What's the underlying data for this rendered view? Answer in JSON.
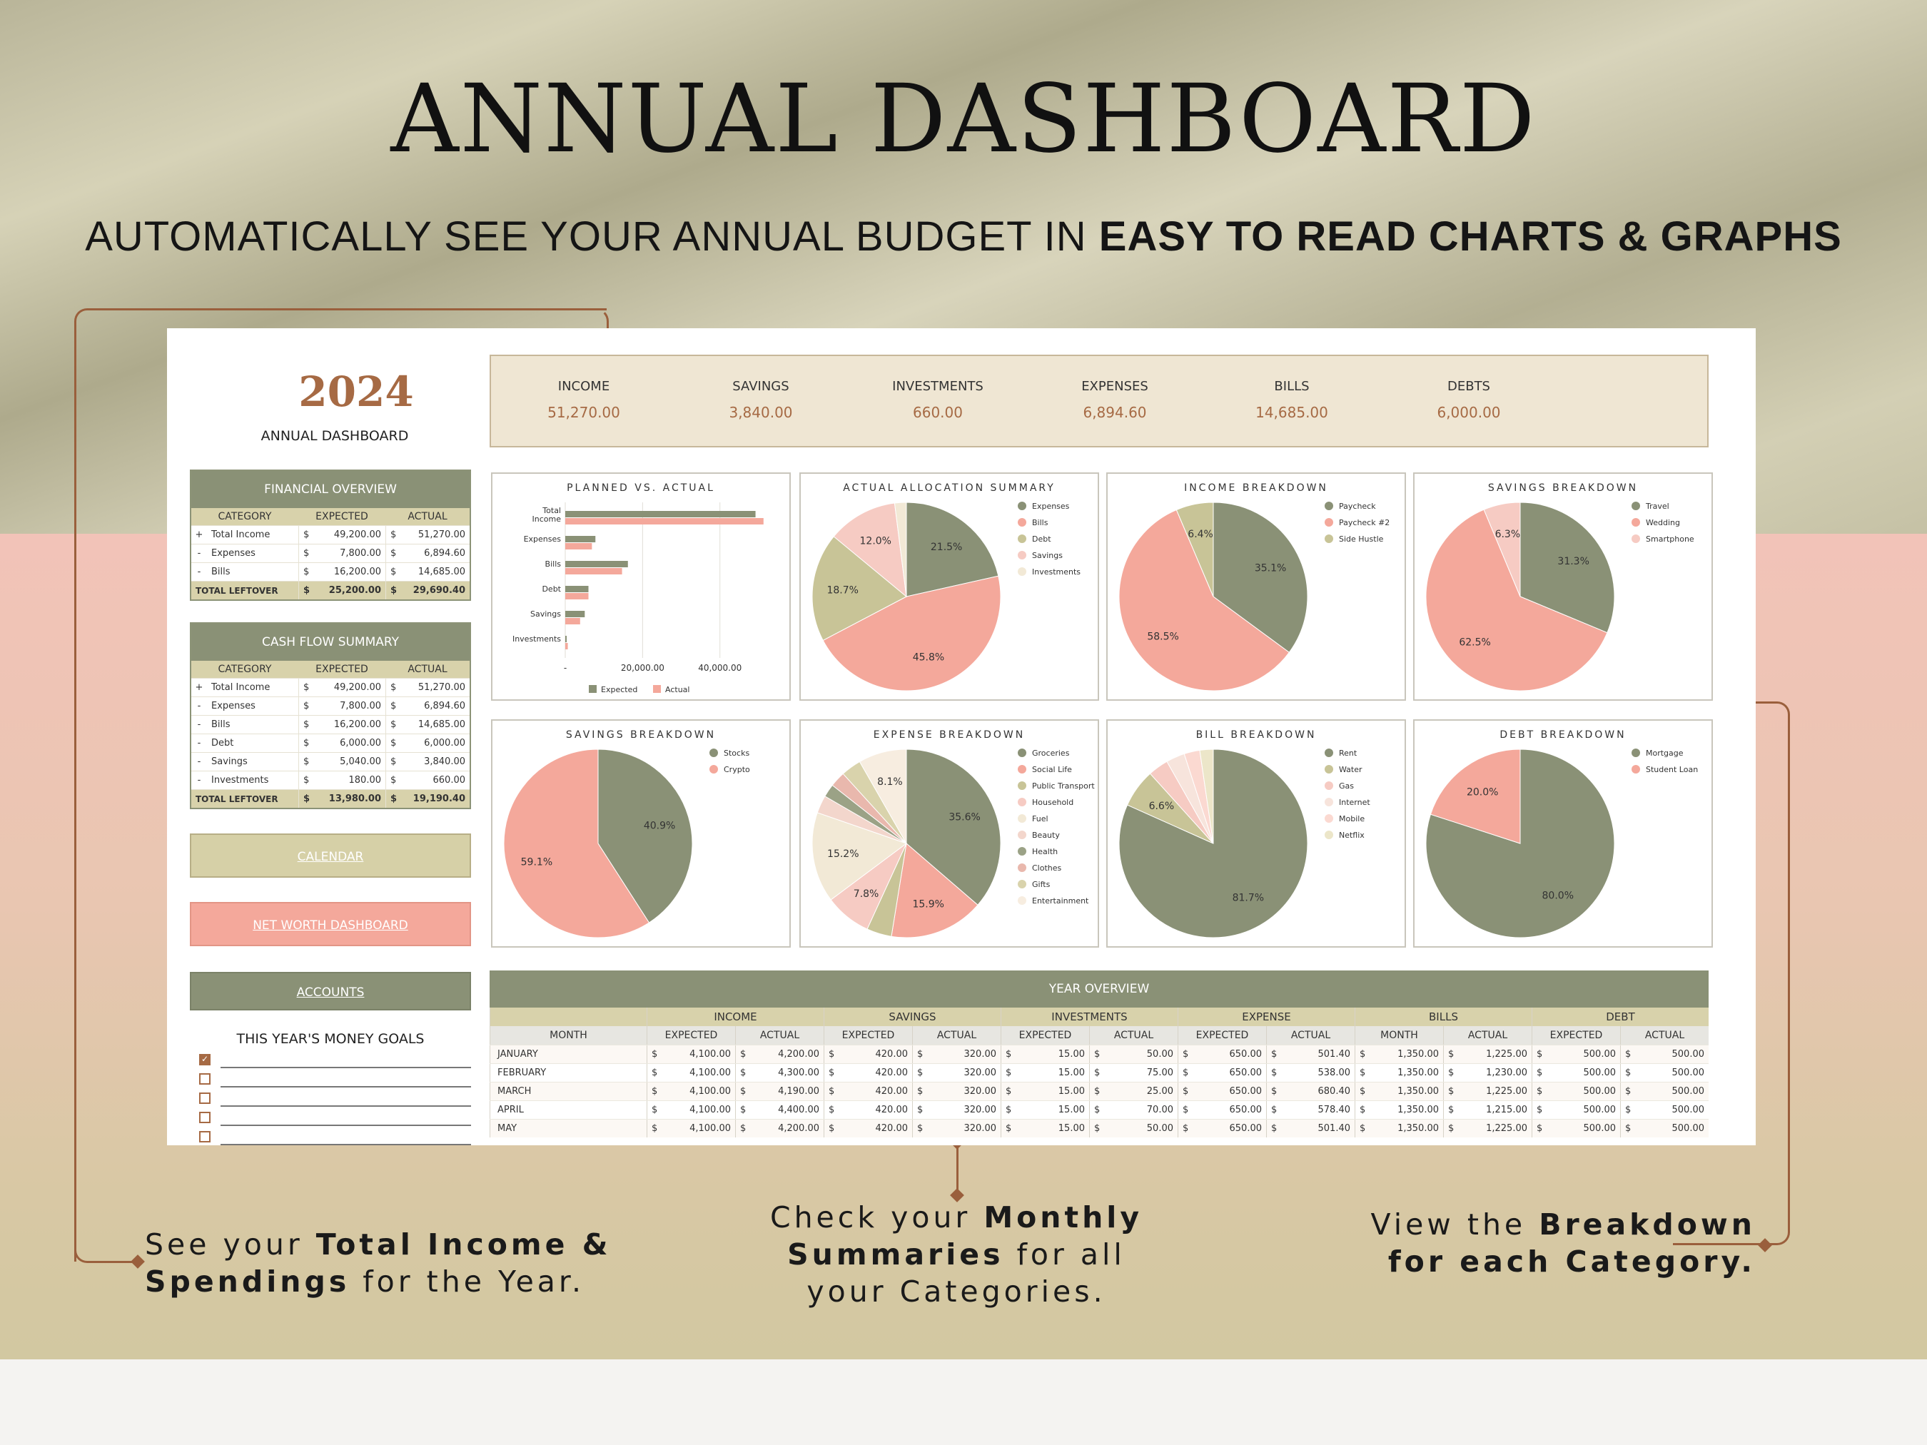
{
  "hero": {
    "title": "ANNUAL DASHBOARD",
    "subtitle_regular": "AUTOMATICALLY SEE YOUR ANNUAL BUDGET IN ",
    "subtitle_bold": "EASY TO READ CHARTS & GRAPHS"
  },
  "callouts": {
    "left": {
      "a": "See your ",
      "b": "Total Income &",
      "c": "Spendings",
      "d": " for the Year."
    },
    "middle": {
      "a": "Check your ",
      "b": "Monthly",
      "c": "Summaries",
      "d": " for all",
      "e": "your Categories."
    },
    "right": {
      "a": "View the ",
      "b": "Breakdown",
      "c": "for each Category."
    }
  },
  "dashboard": {
    "year": "2024",
    "subtitle": "ANNUAL DASHBOARD",
    "summary": [
      {
        "label": "INCOME",
        "value": "51,270.00"
      },
      {
        "label": "SAVINGS",
        "value": "3,840.00"
      },
      {
        "label": "INVESTMENTS",
        "value": "660.00"
      },
      {
        "label": "EXPENSES",
        "value": "6,894.60"
      },
      {
        "label": "BILLS",
        "value": "14,685.00"
      },
      {
        "label": "DEBTS",
        "value": "6,000.00"
      }
    ],
    "financial_overview": {
      "title": "FINANCIAL OVERVIEW",
      "columns": [
        "CATEGORY",
        "EXPECTED",
        "ACTUAL"
      ],
      "rows": [
        {
          "sign": "+",
          "cat": "Total Income",
          "exp": "49,200.00",
          "act": "51,270.00"
        },
        {
          "sign": "-",
          "cat": "Expenses",
          "exp": "7,800.00",
          "act": "6,894.60"
        },
        {
          "sign": "-",
          "cat": "Bills",
          "exp": "16,200.00",
          "act": "14,685.00"
        }
      ],
      "total": {
        "label": "TOTAL LEFTOVER",
        "exp": "25,200.00",
        "act": "29,690.40"
      }
    },
    "cash_flow": {
      "title": "CASH FLOW SUMMARY",
      "columns": [
        "CATEGORY",
        "EXPECTED",
        "ACTUAL"
      ],
      "rows": [
        {
          "sign": "+",
          "cat": "Total Income",
          "exp": "49,200.00",
          "act": "51,270.00"
        },
        {
          "sign": "-",
          "cat": "Expenses",
          "exp": "7,800.00",
          "act": "6,894.60"
        },
        {
          "sign": "-",
          "cat": "Bills",
          "exp": "16,200.00",
          "act": "14,685.00"
        },
        {
          "sign": "-",
          "cat": "Debt",
          "exp": "6,000.00",
          "act": "6,000.00"
        },
        {
          "sign": "-",
          "cat": "Savings",
          "exp": "5,040.00",
          "act": "3,840.00"
        },
        {
          "sign": "-",
          "cat": "Investments",
          "exp": "180.00",
          "act": "660.00"
        }
      ],
      "total": {
        "label": "TOTAL LEFTOVER",
        "exp": "13,980.00",
        "act": "19,190.40"
      }
    },
    "currency": "$",
    "nav": {
      "calendar": "CALENDAR",
      "net_worth": "NET WORTH DASHBOARD",
      "accounts": "ACCOUNTS"
    },
    "goals_title": "THIS YEAR'S MONEY GOALS",
    "goals": [
      true,
      false,
      false,
      false,
      false
    ]
  },
  "colors": {
    "sage": "#8a9176",
    "salmon": "#f4a89b",
    "khaki": "#c8c497",
    "blush": "#f6cbc3",
    "cream": "#f2e9d6",
    "brown": "#a66a44"
  },
  "chart_data": [
    {
      "type": "bar",
      "title": "PLANNED VS. ACTUAL",
      "orientation": "horizontal",
      "categories": [
        "Total Income",
        "Expenses",
        "Bills",
        "Debt",
        "Savings",
        "Investments"
      ],
      "series": [
        {
          "name": "Expected",
          "values": [
            49200,
            7800,
            16200,
            6000,
            5040,
            180
          ]
        },
        {
          "name": "Actual",
          "values": [
            51270,
            6894.6,
            14685,
            6000,
            3840,
            660
          ]
        }
      ],
      "xticks": [
        "-",
        "20,000.00",
        "40,000.00"
      ],
      "xlim": [
        0,
        55000
      ]
    },
    {
      "type": "pie",
      "title": "ACTUAL ALLOCATION SUMMARY",
      "labels": [
        "Expenses",
        "Bills",
        "Debt",
        "Savings",
        "Investments"
      ],
      "values": [
        21.5,
        45.8,
        18.7,
        12.0,
        2.0
      ],
      "data_labels": [
        "21.5%",
        "45.8%",
        "18.7%",
        "12.0%",
        ""
      ]
    },
    {
      "type": "pie",
      "title": "INCOME BREAKDOWN",
      "labels": [
        "Paycheck",
        "Paycheck #2",
        "Side Hustle"
      ],
      "values": [
        35.1,
        58.5,
        6.4
      ],
      "data_labels": [
        "35.1%",
        "58.5%",
        "6.4%"
      ]
    },
    {
      "type": "pie",
      "title": "SAVINGS BREAKDOWN",
      "labels": [
        "Travel",
        "Wedding",
        "Smartphone"
      ],
      "values": [
        31.3,
        62.5,
        6.3
      ],
      "data_labels": [
        "31.3%",
        "62.5%",
        "6.3%"
      ]
    },
    {
      "type": "pie",
      "title": "SAVINGS BREAKDOWN",
      "labels": [
        "Stocks",
        "Crypto"
      ],
      "values": [
        40.9,
        59.1
      ],
      "data_labels": [
        "40.9%",
        "59.1%"
      ]
    },
    {
      "type": "pie",
      "title": "EXPENSE BREAKDOWN",
      "labels": [
        "Groceries",
        "Social Life",
        "Public Transport",
        "Household",
        "Fuel",
        "Beauty",
        "Health",
        "Clothes",
        "Gifts",
        "Entertainment"
      ],
      "values": [
        35.6,
        15.9,
        4.2,
        7.8,
        15.2,
        3.0,
        2.2,
        2.6,
        3.4,
        8.1
      ],
      "data_labels": [
        "35.6%",
        "15.9%",
        "",
        "7.8%",
        "15.2%",
        "",
        "",
        "",
        "",
        "8.1%"
      ]
    },
    {
      "type": "pie",
      "title": "BILL BREAKDOWN",
      "labels": [
        "Rent",
        "Water",
        "Gas",
        "Internet",
        "Mobile",
        "Netflix"
      ],
      "values": [
        81.7,
        6.6,
        3.5,
        3.2,
        2.7,
        2.3
      ],
      "data_labels": [
        "81.7%",
        "6.6%",
        "",
        "",
        "",
        ""
      ]
    },
    {
      "type": "pie",
      "title": "DEBT BREAKDOWN",
      "labels": [
        "Mortgage",
        "Student Loan"
      ],
      "values": [
        80.0,
        20.0
      ],
      "data_labels": [
        "80.0%",
        "20.0%"
      ]
    }
  ],
  "year_overview": {
    "title": "YEAR OVERVIEW",
    "month_label": "MONTH",
    "groups": [
      "INCOME",
      "SAVINGS",
      "INVESTMENTS",
      "EXPENSE",
      "BILLS",
      "DEBT"
    ],
    "subcols": [
      "EXPECTED",
      "ACTUAL",
      "EXPECTED",
      "ACTUAL",
      "EXPECTED",
      "ACTUAL",
      "EXPECTED",
      "ACTUAL",
      "MONTH",
      "ACTUAL",
      "EXPECTED",
      "ACTUAL"
    ],
    "rows": [
      {
        "month": "JANUARY",
        "v": [
          "4,100.00",
          "4,200.00",
          "420.00",
          "320.00",
          "15.00",
          "50.00",
          "650.00",
          "501.40",
          "1,350.00",
          "1,225.00",
          "500.00",
          "500.00"
        ]
      },
      {
        "month": "FEBRUARY",
        "v": [
          "4,100.00",
          "4,300.00",
          "420.00",
          "320.00",
          "15.00",
          "75.00",
          "650.00",
          "538.00",
          "1,350.00",
          "1,230.00",
          "500.00",
          "500.00"
        ]
      },
      {
        "month": "MARCH",
        "v": [
          "4,100.00",
          "4,190.00",
          "420.00",
          "320.00",
          "15.00",
          "25.00",
          "650.00",
          "680.40",
          "1,350.00",
          "1,225.00",
          "500.00",
          "500.00"
        ]
      },
      {
        "month": "APRIL",
        "v": [
          "4,100.00",
          "4,400.00",
          "420.00",
          "320.00",
          "15.00",
          "70.00",
          "650.00",
          "578.40",
          "1,350.00",
          "1,215.00",
          "500.00",
          "500.00"
        ]
      },
      {
        "month": "MAY",
        "v": [
          "4,100.00",
          "4,200.00",
          "420.00",
          "320.00",
          "15.00",
          "50.00",
          "650.00",
          "501.40",
          "1,350.00",
          "1,225.00",
          "500.00",
          "500.00"
        ]
      }
    ]
  }
}
